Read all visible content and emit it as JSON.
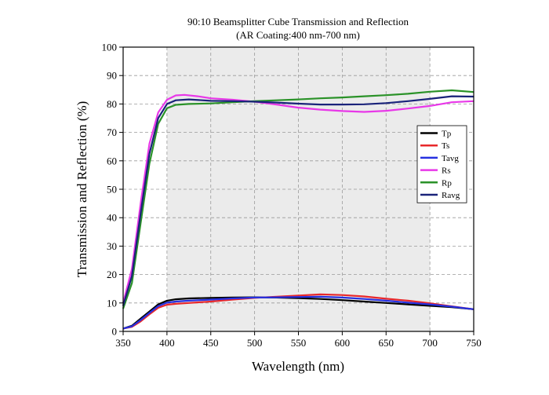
{
  "chart_data": {
    "type": "line",
    "title": "90:10 Beamsplitter Cube Transmission and Reflection",
    "subtitle": "(AR Coating:400 nm-700 nm)",
    "xlabel": "Wavelength (nm)",
    "ylabel": "Transmission and Reflection (%)",
    "xlim": [
      350,
      750
    ],
    "ylim": [
      0,
      100
    ],
    "xticks": [
      350,
      400,
      450,
      500,
      550,
      600,
      650,
      700,
      750
    ],
    "yticks": [
      0,
      10,
      20,
      30,
      40,
      50,
      60,
      70,
      80,
      90,
      100
    ],
    "shaded_region": [
      400,
      700
    ],
    "grid": true,
    "legend_position": "right",
    "series": [
      {
        "name": "Tp",
        "color": "#000000",
        "points": [
          [
            350,
            1
          ],
          [
            360,
            2
          ],
          [
            370,
            4.5
          ],
          [
            380,
            7
          ],
          [
            390,
            9.5
          ],
          [
            400,
            10.8
          ],
          [
            410,
            11.3
          ],
          [
            425,
            11.6
          ],
          [
            450,
            11.8
          ],
          [
            475,
            11.9
          ],
          [
            500,
            12
          ],
          [
            525,
            11.9
          ],
          [
            550,
            11.7
          ],
          [
            575,
            11.4
          ],
          [
            600,
            11
          ],
          [
            625,
            10.5
          ],
          [
            650,
            10
          ],
          [
            675,
            9.5
          ],
          [
            700,
            9
          ],
          [
            725,
            8.5
          ],
          [
            750,
            7.8
          ]
        ]
      },
      {
        "name": "Ts",
        "color": "#e8282b",
        "points": [
          [
            350,
            1
          ],
          [
            360,
            1.6
          ],
          [
            370,
            3.5
          ],
          [
            380,
            6
          ],
          [
            390,
            8.3
          ],
          [
            400,
            9.4
          ],
          [
            410,
            9.7
          ],
          [
            425,
            10
          ],
          [
            450,
            10.5
          ],
          [
            475,
            11.2
          ],
          [
            500,
            11.8
          ],
          [
            525,
            12.2
          ],
          [
            550,
            12.6
          ],
          [
            575,
            13
          ],
          [
            600,
            12.8
          ],
          [
            625,
            12.3
          ],
          [
            650,
            11.5
          ],
          [
            675,
            10.8
          ],
          [
            700,
            9.9
          ],
          [
            725,
            8.8
          ],
          [
            750,
            7.8
          ]
        ]
      },
      {
        "name": "Tavg",
        "color": "#2630e0",
        "points": [
          [
            350,
            1
          ],
          [
            360,
            1.8
          ],
          [
            370,
            4
          ],
          [
            380,
            6.5
          ],
          [
            390,
            8.9
          ],
          [
            400,
            10.1
          ],
          [
            410,
            10.5
          ],
          [
            425,
            10.8
          ],
          [
            450,
            11.2
          ],
          [
            475,
            11.6
          ],
          [
            500,
            11.9
          ],
          [
            525,
            12
          ],
          [
            550,
            12.1
          ],
          [
            575,
            12.2
          ],
          [
            600,
            11.9
          ],
          [
            625,
            11.4
          ],
          [
            650,
            10.8
          ],
          [
            675,
            10.1
          ],
          [
            700,
            9.5
          ],
          [
            725,
            8.7
          ],
          [
            750,
            7.8
          ]
        ]
      },
      {
        "name": "Rs",
        "color": "#e838e8",
        "points": [
          [
            350,
            10
          ],
          [
            360,
            22
          ],
          [
            370,
            45
          ],
          [
            380,
            66
          ],
          [
            390,
            77
          ],
          [
            400,
            81.5
          ],
          [
            410,
            83
          ],
          [
            420,
            83.2
          ],
          [
            435,
            82.7
          ],
          [
            450,
            82
          ],
          [
            475,
            81.5
          ],
          [
            500,
            80.8
          ],
          [
            525,
            79.8
          ],
          [
            550,
            78.7
          ],
          [
            575,
            78
          ],
          [
            600,
            77.5
          ],
          [
            625,
            77.2
          ],
          [
            650,
            77.6
          ],
          [
            675,
            78.4
          ],
          [
            700,
            79.3
          ],
          [
            725,
            80.6
          ],
          [
            750,
            81
          ]
        ]
      },
      {
        "name": "Rp",
        "color": "#2a9228",
        "points": [
          [
            350,
            8
          ],
          [
            360,
            17
          ],
          [
            370,
            38
          ],
          [
            380,
            59
          ],
          [
            390,
            73
          ],
          [
            400,
            78.5
          ],
          [
            410,
            79.7
          ],
          [
            425,
            80
          ],
          [
            450,
            80.2
          ],
          [
            475,
            80.6
          ],
          [
            500,
            81
          ],
          [
            525,
            81.3
          ],
          [
            550,
            81.6
          ],
          [
            575,
            82
          ],
          [
            600,
            82.3
          ],
          [
            625,
            82.7
          ],
          [
            650,
            83.1
          ],
          [
            675,
            83.6
          ],
          [
            700,
            84.3
          ],
          [
            725,
            84.8
          ],
          [
            750,
            84.2
          ]
        ]
      },
      {
        "name": "Ravg",
        "color": "#1a237a",
        "points": [
          [
            350,
            9
          ],
          [
            360,
            19.5
          ],
          [
            370,
            41.5
          ],
          [
            380,
            62.5
          ],
          [
            390,
            75
          ],
          [
            400,
            80
          ],
          [
            410,
            81.3
          ],
          [
            425,
            81.6
          ],
          [
            450,
            81.1
          ],
          [
            475,
            81
          ],
          [
            500,
            80.8
          ],
          [
            525,
            80.5
          ],
          [
            550,
            80.1
          ],
          [
            575,
            79.8
          ],
          [
            600,
            79.8
          ],
          [
            625,
            79.9
          ],
          [
            650,
            80.3
          ],
          [
            675,
            81
          ],
          [
            700,
            81.8
          ],
          [
            725,
            82.7
          ],
          [
            750,
            82.6
          ]
        ]
      }
    ]
  }
}
